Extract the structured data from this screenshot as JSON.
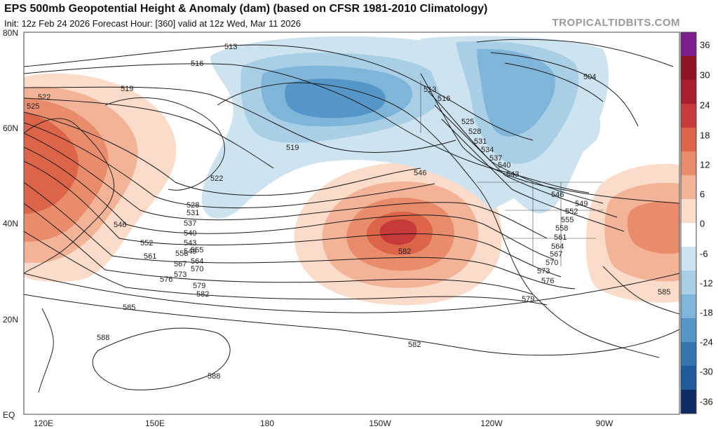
{
  "header": {
    "title": "EPS 500mb Geopotential Height & Anomaly (dam) (based on CFSR 1981-2010 Climatology)",
    "subtitle": "Init: 12z Feb 24 2026   Forecast Hour: [360]   valid at 12z Wed, Mar 11 2026",
    "credit": "TROPICALTIDBITS.COM"
  },
  "axes": {
    "lat_labels": [
      "80N",
      "60N",
      "40N",
      "20N",
      "EQ"
    ],
    "lon_labels": [
      "120E",
      "150E",
      "180",
      "150W",
      "120W",
      "90W"
    ]
  },
  "colorbar": {
    "ticks": [
      "36",
      "30",
      "24",
      "18",
      "12",
      "6",
      "0",
      "-6",
      "-12",
      "-18",
      "-24",
      "-30",
      "-36"
    ],
    "positive_colors": [
      "#7d1e8e",
      "#8e1426",
      "#a81f2d",
      "#c63a3a",
      "#dc6448",
      "#e98c6c",
      "#f3b397",
      "#fbdccb"
    ],
    "negative_colors": [
      "#cde3f0",
      "#a9cfe6",
      "#7fb5d9",
      "#5596c8",
      "#3475b2",
      "#1f5a9b",
      "#173f82",
      "#0f2b66"
    ]
  },
  "contour_labels": {
    "north_pacific_ridge": [
      "513",
      "516",
      "519",
      "522",
      "525",
      "528",
      "531",
      "537",
      "540",
      "543",
      "546",
      "549",
      "552",
      "555",
      "558",
      "561",
      "564",
      "567",
      "570",
      "573",
      "576",
      "579",
      "582",
      "585",
      "588",
      "588"
    ],
    "western_us": [
      "513",
      "516",
      "519",
      "522",
      "525",
      "528",
      "531",
      "534",
      "537",
      "540",
      "543",
      "546",
      "549",
      "552",
      "555",
      "558",
      "561",
      "564",
      "567",
      "570",
      "573",
      "576",
      "579",
      "582"
    ],
    "extra": [
      "504",
      "546",
      "582",
      "585"
    ]
  },
  "anomaly_features": [
    {
      "name": "NE Pacific ridge",
      "type": "positive"
    },
    {
      "name": "Bering / Alaska trough",
      "type": "negative"
    },
    {
      "name": "Canada trough",
      "type": "negative"
    },
    {
      "name": "East Asia ridge",
      "type": "positive"
    },
    {
      "name": "Eastern US ridge",
      "type": "positive"
    }
  ]
}
